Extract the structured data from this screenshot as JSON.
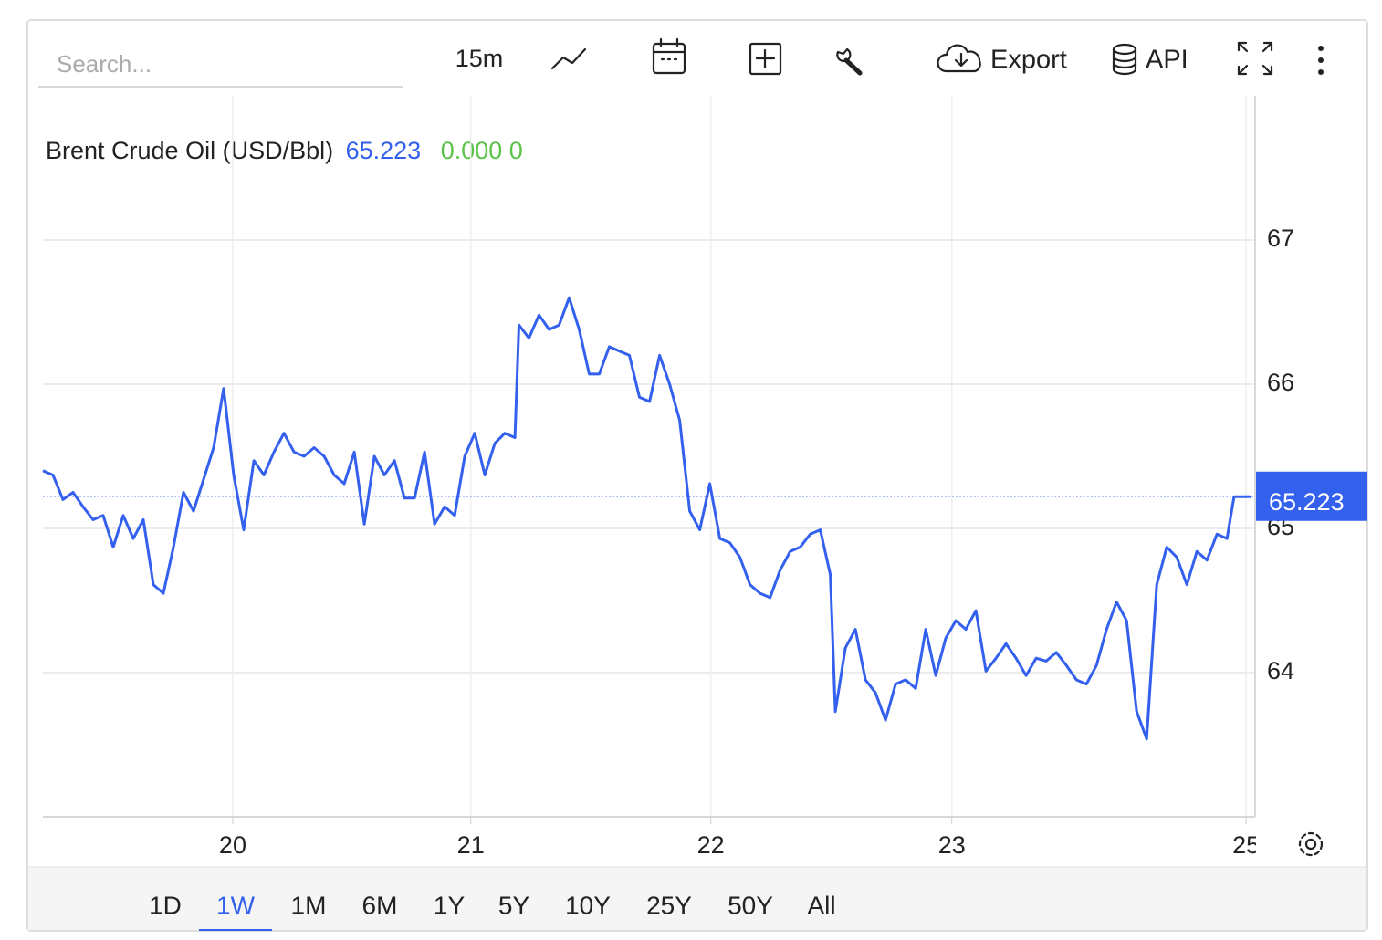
{
  "search": {
    "placeholder": "Search..."
  },
  "toolbar": {
    "interval": "15m",
    "export": "Export",
    "api": "API"
  },
  "legend": {
    "name": "Brent Crude Oil (USD/Bbl)",
    "price": "65.223",
    "change": "0.000 0"
  },
  "ranges": [
    "1D",
    "1W",
    "1M",
    "6M",
    "1Y",
    "5Y",
    "10Y",
    "25Y",
    "50Y",
    "All"
  ],
  "active_range": "1W",
  "chart_data": {
    "type": "line",
    "xlim": [
      0,
      120.7
    ],
    "ylim": [
      63,
      68
    ],
    "xticks": [
      {
        "value": 18.9,
        "label": "20"
      },
      {
        "value": 42.6,
        "label": "21"
      },
      {
        "value": 66.5,
        "label": "22"
      },
      {
        "value": 90.5,
        "label": "23"
      },
      {
        "value": 119.8,
        "label": "25"
      }
    ],
    "yticks": [
      64,
      65,
      66,
      67
    ],
    "grid": true,
    "last_value": 65.223,
    "last_value_label": "65.223",
    "series": [
      {
        "name": "Brent Crude Oil (USD/Bbl)",
        "color": "#3460ee",
        "x": [
          0,
          1,
          2,
          3,
          4,
          5,
          6,
          7,
          8,
          9,
          10,
          11,
          12,
          13,
          14,
          15,
          16,
          17,
          18,
          19,
          20,
          21,
          22,
          23,
          24,
          25,
          26,
          27,
          28,
          29,
          30,
          31,
          32,
          33,
          34,
          35,
          36,
          37,
          38,
          39,
          40,
          41,
          42,
          43,
          44,
          45,
          46,
          47,
          47.4,
          48.4,
          49.4,
          50.4,
          51.4,
          52.4,
          53.4,
          54.4,
          55.4,
          56.4,
          57.4,
          58.4,
          59.4,
          60.4,
          61.4,
          62.4,
          63.4,
          64.4,
          65.4,
          66.4,
          67.4,
          68.4,
          69.4,
          70.4,
          71.4,
          72.4,
          73.4,
          74.4,
          75.4,
          76.4,
          77.4,
          78.4,
          78.9,
          79.9,
          80.9,
          81.9,
          82.9,
          83.9,
          84.9,
          85.9,
          86.9,
          87.9,
          88.9,
          89.9,
          90.9,
          91.9,
          92.9,
          93.9,
          94.9,
          95.9,
          96.9,
          97.9,
          98.9,
          99.9,
          100.9,
          101.9,
          102.9,
          103.9,
          104.9,
          105.9,
          106.9,
          107.9,
          108.9,
          109.9,
          110.9,
          111.9,
          112.9,
          113.9,
          114.9,
          115.9,
          116.9,
          117.9,
          118.6,
          120.3
        ],
        "values": [
          65.4,
          65.37,
          65.2,
          65.25,
          65.15,
          65.06,
          65.09,
          64.87,
          65.09,
          64.93,
          65.06,
          64.61,
          64.55,
          64.87,
          65.25,
          65.12,
          65.34,
          65.56,
          65.97,
          65.37,
          64.99,
          65.47,
          65.37,
          65.53,
          65.66,
          65.53,
          65.5,
          65.56,
          65.5,
          65.37,
          65.31,
          65.53,
          65.03,
          65.5,
          65.37,
          65.47,
          65.21,
          65.21,
          65.53,
          65.03,
          65.15,
          65.09,
          65.5,
          65.66,
          65.37,
          65.59,
          65.66,
          65.63,
          66.41,
          66.32,
          66.48,
          66.38,
          66.41,
          66.6,
          66.38,
          66.07,
          66.07,
          66.26,
          66.23,
          66.2,
          65.91,
          65.88,
          66.2,
          66.0,
          65.75,
          65.12,
          64.99,
          65.31,
          64.93,
          64.9,
          64.8,
          64.61,
          64.55,
          64.52,
          64.71,
          64.84,
          64.87,
          64.96,
          64.99,
          64.68,
          63.73,
          64.17,
          64.3,
          63.95,
          63.86,
          63.67,
          63.92,
          63.95,
          63.89,
          64.3,
          63.98,
          64.24,
          64.36,
          64.3,
          64.43,
          64.01,
          64.1,
          64.2,
          64.1,
          63.98,
          64.1,
          64.08,
          64.14,
          64.05,
          63.95,
          63.92,
          64.05,
          64.3,
          64.49,
          64.36,
          63.73,
          63.54,
          64.61,
          64.87,
          64.8,
          64.61,
          64.84,
          64.78,
          64.96,
          64.93,
          65.22,
          65.22
        ]
      }
    ]
  }
}
